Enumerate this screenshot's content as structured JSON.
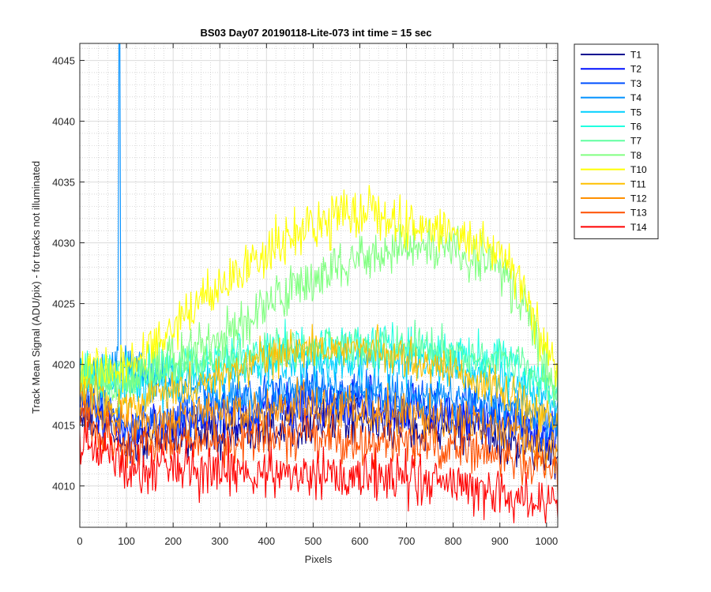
{
  "chart_data": {
    "type": "line",
    "title": "BS03 Day07 20190118-Lite-073 int time = 15 sec",
    "xlabel": "Pixels",
    "ylabel": "Track Mean Signal (ADU/pix) - for tracks not illuminated",
    "xlim": [
      0,
      1024
    ],
    "ylim": [
      4006.6,
      4046.4
    ],
    "xticks": [
      "0",
      "100",
      "200",
      "300",
      "400",
      "500",
      "600",
      "700",
      "800",
      "900",
      "1000"
    ],
    "yticks": [
      "4010",
      "4015",
      "4020",
      "4025",
      "4030",
      "4035",
      "4040",
      "4045"
    ],
    "grid": "on",
    "minor_grid": "on",
    "legend_position": "outside-top-right",
    "series": [
      {
        "name": "T1",
        "color": "#000090",
        "profile": [
          [
            0,
            4016
          ],
          [
            100,
            4013.5
          ],
          [
            300,
            4014.5
          ],
          [
            500,
            4015.5
          ],
          [
            700,
            4015
          ],
          [
            900,
            4014
          ],
          [
            1024,
            4012.5
          ]
        ],
        "noise": 1.5
      },
      {
        "name": "T2",
        "color": "#0010ff",
        "profile": [
          [
            0,
            4017
          ],
          [
            100,
            4014.5
          ],
          [
            300,
            4015.5
          ],
          [
            500,
            4017
          ],
          [
            700,
            4016.5
          ],
          [
            900,
            4015.5
          ],
          [
            1024,
            4014
          ]
        ],
        "noise": 1.5
      },
      {
        "name": "T3",
        "color": "#0050ff",
        "profile": [
          [
            0,
            4017.5
          ],
          [
            100,
            4015
          ],
          [
            300,
            4016.5
          ],
          [
            500,
            4017.5
          ],
          [
            700,
            4017
          ],
          [
            900,
            4016
          ],
          [
            1024,
            4014.5
          ]
        ],
        "noise": 1.5
      },
      {
        "name": "T4",
        "color": "#0090ff",
        "profile": [
          [
            0,
            4018.5
          ],
          [
            85,
            4020
          ],
          [
            300,
            4017
          ],
          [
            500,
            4018
          ],
          [
            700,
            4017.5
          ],
          [
            900,
            4017
          ],
          [
            1024,
            4015.5
          ]
        ],
        "noise": 1.4,
        "spike": {
          "x": 85,
          "y": 4046.4
        }
      },
      {
        "name": "T5",
        "color": "#00d0ff",
        "profile": [
          [
            0,
            4019
          ],
          [
            100,
            4018
          ],
          [
            300,
            4019
          ],
          [
            500,
            4020.5
          ],
          [
            700,
            4020
          ],
          [
            900,
            4019
          ],
          [
            1024,
            4017
          ]
        ],
        "noise": 1.4
      },
      {
        "name": "T6",
        "color": "#20ffe0",
        "profile": [
          [
            0,
            4019.5
          ],
          [
            100,
            4019
          ],
          [
            300,
            4020.5
          ],
          [
            500,
            4021.5
          ],
          [
            700,
            4021.5
          ],
          [
            900,
            4020.5
          ],
          [
            1024,
            4017.5
          ]
        ],
        "noise": 1.4
      },
      {
        "name": "T7",
        "color": "#60ffa0",
        "profile": [
          [
            0,
            4019.5
          ],
          [
            100,
            4019
          ],
          [
            300,
            4020.5
          ],
          [
            500,
            4021.5
          ],
          [
            700,
            4021.5
          ],
          [
            900,
            4020.5
          ],
          [
            1024,
            4017.5
          ]
        ],
        "noise": 1.3
      },
      {
        "name": "T8",
        "color": "#80ff80",
        "profile": [
          [
            0,
            4018.5
          ],
          [
            100,
            4018.5
          ],
          [
            300,
            4022
          ],
          [
            400,
            4025
          ],
          [
            500,
            4027
          ],
          [
            600,
            4029
          ],
          [
            700,
            4029.5
          ],
          [
            800,
            4029.5
          ],
          [
            900,
            4028
          ],
          [
            950,
            4025
          ],
          [
            1024,
            4017.5
          ]
        ],
        "noise": 1.6
      },
      {
        "name": "T10",
        "color": "#ffff00",
        "profile": [
          [
            0,
            4019.5
          ],
          [
            100,
            4019.5
          ],
          [
            200,
            4023.5
          ],
          [
            300,
            4026.5
          ],
          [
            400,
            4029.5
          ],
          [
            500,
            4031.5
          ],
          [
            600,
            4032.5
          ],
          [
            700,
            4031.5
          ],
          [
            800,
            4031
          ],
          [
            900,
            4029
          ],
          [
            950,
            4026
          ],
          [
            1024,
            4019
          ]
        ],
        "noise": 1.6
      },
      {
        "name": "T11",
        "color": "#ffc000",
        "profile": [
          [
            0,
            4018
          ],
          [
            100,
            4016.5
          ],
          [
            300,
            4019
          ],
          [
            400,
            4020.5
          ],
          [
            500,
            4021.5
          ],
          [
            600,
            4021.5
          ],
          [
            700,
            4020.5
          ],
          [
            800,
            4019.5
          ],
          [
            900,
            4018
          ],
          [
            1024,
            4015
          ]
        ],
        "noise": 1.3
      },
      {
        "name": "T12",
        "color": "#ff9000",
        "profile": [
          [
            0,
            4017
          ],
          [
            100,
            4015
          ],
          [
            300,
            4016
          ],
          [
            500,
            4016.5
          ],
          [
            700,
            4016
          ],
          [
            900,
            4015
          ],
          [
            1024,
            4013
          ]
        ],
        "noise": 1.5
      },
      {
        "name": "T13",
        "color": "#ff5000",
        "profile": [
          [
            0,
            4015.5
          ],
          [
            100,
            4013.5
          ],
          [
            300,
            4013.5
          ],
          [
            500,
            4014
          ],
          [
            700,
            4013.5
          ],
          [
            900,
            4012.5
          ],
          [
            1024,
            4011
          ]
        ],
        "noise": 1.5
      },
      {
        "name": "T14",
        "color": "#ff0000",
        "profile": [
          [
            0,
            4014
          ],
          [
            100,
            4011.5
          ],
          [
            300,
            4011.5
          ],
          [
            500,
            4011
          ],
          [
            700,
            4010.5
          ],
          [
            900,
            4009.5
          ],
          [
            1024,
            4008.5
          ]
        ],
        "noise": 1.6
      }
    ]
  }
}
